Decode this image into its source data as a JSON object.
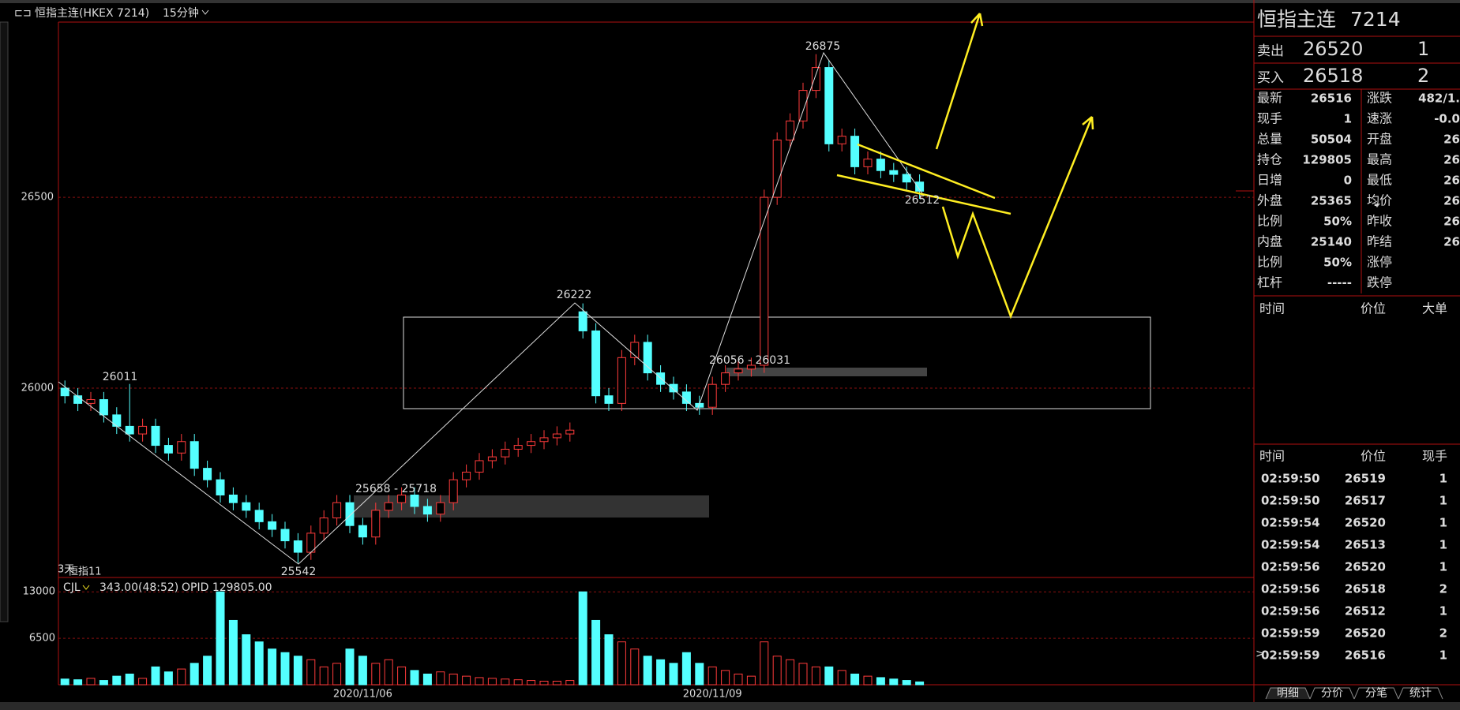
{
  "header": {
    "instrument": "恒指主连(HKEX 7214)",
    "period": "15分钟"
  },
  "chart_data": [
    {
      "type": "candlestick",
      "up_color": "#ff3b3b",
      "down_color": "#54ffff",
      "grid": true,
      "ylim": [
        25504,
        26959
      ],
      "yticks": [
        26000,
        26500
      ],
      "categories": [
        null,
        null,
        null,
        null,
        null,
        null,
        null,
        null,
        null,
        null,
        null,
        null,
        null,
        null,
        null,
        null,
        null,
        null,
        null,
        null,
        null,
        null,
        null,
        "2020/11/06",
        null,
        null,
        null,
        null,
        null,
        null,
        null,
        null,
        null,
        null,
        null,
        null,
        null,
        null,
        null,
        null,
        null,
        null,
        null,
        null,
        null,
        null,
        null,
        null,
        null,
        null,
        "2020/11/09",
        null,
        null,
        null,
        null,
        null,
        null,
        null,
        null,
        null,
        null,
        null,
        null,
        null,
        null,
        null,
        null
      ],
      "open": [
        26000,
        25980,
        25960,
        25970,
        25930,
        25900,
        25880,
        25900,
        25850,
        25830,
        25860,
        25790,
        25760,
        25720,
        25700,
        25680,
        25650,
        25630,
        25600,
        25570,
        25620,
        25660,
        25700,
        25640,
        25610,
        25680,
        25700,
        25720,
        25690,
        25670,
        25700,
        25760,
        25780,
        25810,
        25820,
        25840,
        25850,
        25860,
        25870,
        25880,
        26200,
        26150,
        25980,
        25960,
        26080,
        26120,
        26040,
        26010,
        25990,
        25960,
        25950,
        26010,
        26040,
        26050,
        26060,
        26500,
        26650,
        26700,
        26780,
        26840,
        26640,
        26660,
        26580,
        26600,
        26570,
        26560,
        26540
      ],
      "high": [
        26020,
        26000,
        25990,
        25990,
        25950,
        26011,
        25920,
        25920,
        25870,
        25880,
        25880,
        25810,
        25780,
        25740,
        25720,
        25700,
        25670,
        25650,
        25620,
        25640,
        25680,
        25720,
        25720,
        25660,
        25700,
        25720,
        25740,
        25740,
        25710,
        25720,
        25780,
        25800,
        25830,
        25840,
        25860,
        25870,
        25880,
        25890,
        25900,
        25910,
        26222,
        26170,
        26000,
        26100,
        26140,
        26140,
        26060,
        26030,
        26010,
        25980,
        26030,
        26060,
        26070,
        26080,
        26520,
        26670,
        26720,
        26800,
        26875,
        26860,
        26680,
        26680,
        26620,
        26620,
        26590,
        26580,
        26560
      ],
      "low": [
        25960,
        25940,
        25940,
        25910,
        25880,
        25860,
        25860,
        25830,
        25810,
        25810,
        25770,
        25740,
        25700,
        25680,
        25660,
        25630,
        25610,
        25580,
        25542,
        25550,
        25600,
        25640,
        25620,
        25590,
        25590,
        25660,
        25680,
        25670,
        25650,
        25650,
        25680,
        25740,
        25760,
        25790,
        25800,
        25820,
        25830,
        25840,
        25850,
        25860,
        26130,
        25960,
        25940,
        25940,
        26060,
        26020,
        25990,
        25970,
        25940,
        25930,
        25930,
        25990,
        26020,
        26030,
        26040,
        26480,
        26630,
        26680,
        26760,
        26620,
        26620,
        26560,
        26560,
        26550,
        26540,
        26520,
        26496
      ],
      "close": [
        25980,
        25960,
        25970,
        25930,
        25900,
        25880,
        25900,
        25850,
        25830,
        25860,
        25790,
        25760,
        25720,
        25700,
        25680,
        25650,
        25630,
        25600,
        25570,
        25620,
        25660,
        25700,
        25640,
        25610,
        25680,
        25700,
        25720,
        25690,
        25670,
        25700,
        25760,
        25780,
        25810,
        25820,
        25840,
        25850,
        25860,
        25870,
        25880,
        25890,
        26150,
        25980,
        25960,
        26080,
        26120,
        26040,
        26010,
        25990,
        25960,
        25950,
        26010,
        26040,
        26050,
        26060,
        26500,
        26650,
        26700,
        26780,
        26840,
        26640,
        26660,
        26580,
        26600,
        26570,
        26560,
        26540,
        26516
      ]
    },
    {
      "type": "bar",
      "name": "CJL",
      "reading": "343.00(48:52)",
      "opid": "OPID 129805.00",
      "grid": true,
      "ylim": [
        0,
        14900
      ],
      "yticks": [
        6500,
        13000
      ],
      "values": [
        800,
        700,
        900,
        600,
        1200,
        1500,
        900,
        2500,
        1800,
        2200,
        3000,
        4000,
        13000,
        9000,
        7000,
        6000,
        5000,
        4500,
        4000,
        3500,
        2500,
        3000,
        5000,
        4000,
        3000,
        3500,
        2500,
        2000,
        1500,
        1800,
        1500,
        1200,
        1000,
        900,
        800,
        700,
        600,
        500,
        500,
        600,
        13000,
        9000,
        7000,
        6000,
        5000,
        4000,
        3500,
        3000,
        4500,
        3000,
        2500,
        2000,
        1500,
        1200,
        6000,
        4000,
        3500,
        3000,
        2500,
        2500,
        2000,
        1500,
        1200,
        1000,
        800,
        600,
        400
      ]
    }
  ],
  "annotations": {
    "prev_high": 26011,
    "low": 25542,
    "mid_high": 26222,
    "high": 26875,
    "last": 26512,
    "zone_upper": "26056 - 26031",
    "zone_lower": "25658 - 25718",
    "days": "3天",
    "contract": "恒指11"
  },
  "panel": {
    "title": "恒指主连",
    "code": "7214",
    "ask": {
      "label": "卖出",
      "price": "26520",
      "qty": "1"
    },
    "bid": {
      "label": "买入",
      "price": "26518",
      "qty": "2"
    },
    "rows": [
      [
        "最新",
        "26516",
        "涨跌",
        "482/1."
      ],
      [
        "现手",
        "1",
        "速涨",
        "-0.0"
      ],
      [
        "总量",
        "50504",
        "开盘",
        "26"
      ],
      [
        "持仓",
        "129805",
        "最高",
        "26"
      ],
      [
        "日增",
        "0",
        "最低",
        "26"
      ],
      [
        "外盘",
        "25365",
        "均价",
        "26"
      ],
      [
        "比例",
        "50%",
        "昨收",
        "26"
      ],
      [
        "内盘",
        "25140",
        "昨结",
        "26"
      ],
      [
        "比例",
        "50%",
        "涨停",
        ""
      ],
      [
        "杠杆",
        "-----",
        "跌停",
        ""
      ]
    ],
    "value_colors": [
      [
        "#ff3b3b",
        "#ff3b3b"
      ],
      [
        "#ffff33",
        "#33ff33"
      ],
      [
        "#ffff33",
        "#ff3b3b"
      ],
      [
        "#ffff33",
        "#ff3b3b"
      ],
      [
        "#ffff33",
        "#33ff33"
      ],
      [
        "#ffff33",
        "#ff3b3b"
      ],
      [
        "#ffff33",
        "#ffffff"
      ],
      [
        "#ffff33",
        "#ffffff"
      ],
      [
        "#ffff33",
        "#ffffff"
      ],
      [
        "#ffff33",
        "#ffffff"
      ]
    ],
    "big_header": [
      "时间",
      "价位",
      "大单"
    ],
    "trade_header": [
      "时间",
      "价位",
      "现手"
    ],
    "trades": [
      {
        "time": "02:59:50",
        "price": "26519",
        "qty": "1",
        "color": "#ff3b3b"
      },
      {
        "time": "02:59:50",
        "price": "26517",
        "qty": "1",
        "color": "#33ff33"
      },
      {
        "time": "02:59:54",
        "price": "26520",
        "qty": "1",
        "color": "#ff3b3b"
      },
      {
        "time": "02:59:54",
        "price": "26513",
        "qty": "1",
        "color": "#33ff33"
      },
      {
        "time": "02:59:56",
        "price": "26520",
        "qty": "1",
        "color": "#ff3b3b"
      },
      {
        "time": "02:59:56",
        "price": "26518",
        "qty": "2",
        "color": "#33ff33"
      },
      {
        "time": "02:59:56",
        "price": "26512",
        "qty": "1",
        "color": "#33ff33"
      },
      {
        "time": "02:59:59",
        "price": "26520",
        "qty": "2",
        "color": "#ff3b3b"
      },
      {
        "time": "02:59:59",
        "price": "26516",
        "qty": "1",
        "color": "#33ff33"
      }
    ],
    "tabs": [
      "明细",
      "分价",
      "分笔",
      "统计"
    ]
  }
}
